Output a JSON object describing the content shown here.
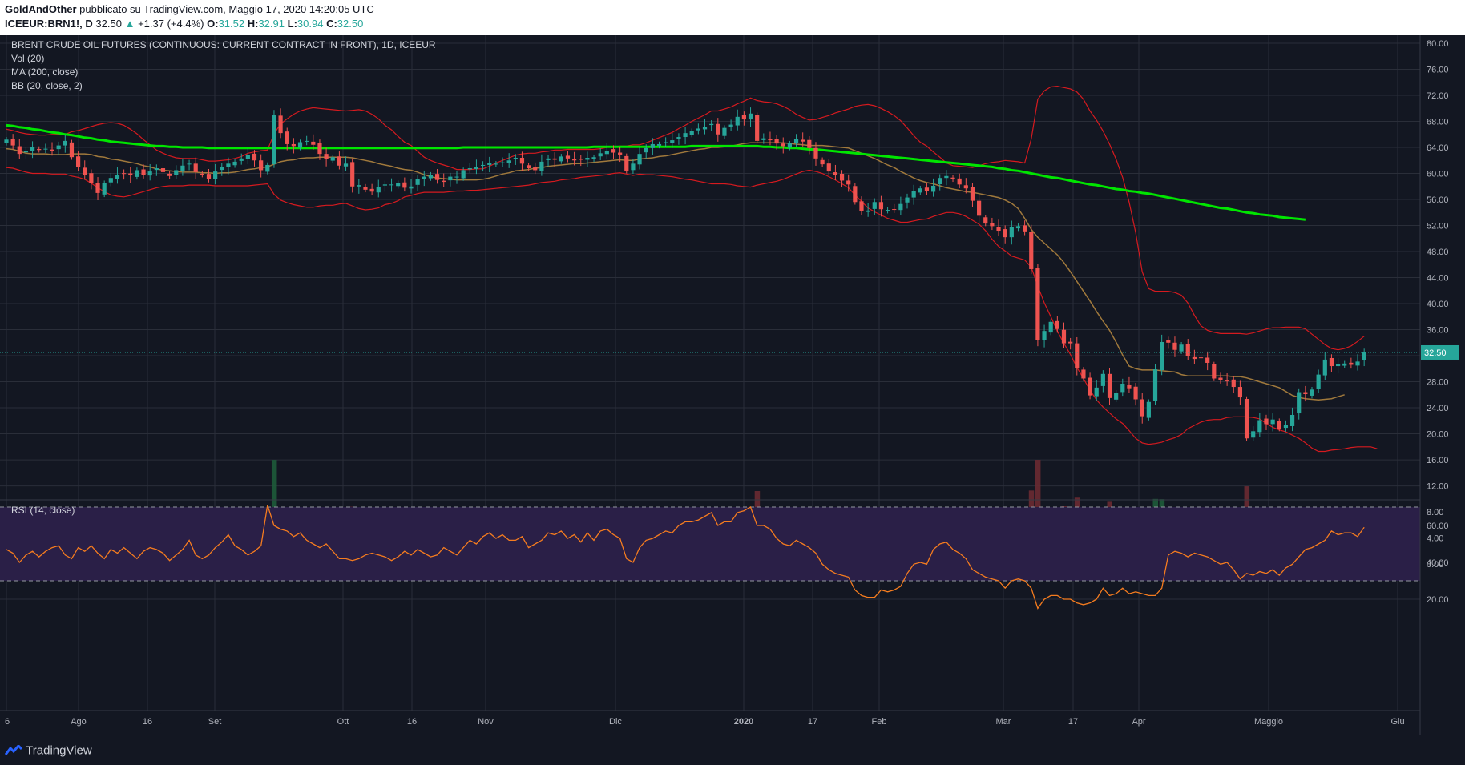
{
  "header": {
    "author": "GoldAndOther",
    "published_text": "pubblicato su TradingView.com, Maggio 17, 2020 14:20:05 UTC",
    "symbol": "ICEEUR:BRN1!, D",
    "last": "32.50",
    "change_arrow": "▲",
    "change": "+1.37 (+4.4%)",
    "o_label": "O:",
    "o_value": "31.52",
    "h_label": "H:",
    "h_value": "32.91",
    "l_label": "L:",
    "l_value": "30.94",
    "c_label": "C:",
    "c_value": "32.50"
  },
  "legend": {
    "title": "BRENT CRUDE OIL FUTURES (CONTINUOUS: CURRENT CONTRACT IN FRONT), 1D, ICEEUR",
    "vol": "Vol (20)",
    "ma": "MA (200, close)",
    "bb": "BB (20, close, 2)",
    "rsi": "RSI (14, close)"
  },
  "footer": {
    "brand": "TradingView",
    "brand_icon": "tradingview-logo-icon"
  },
  "colors": {
    "background": "#131722",
    "grid": "#2a2e39",
    "up": "#26a69a",
    "down": "#ef5350",
    "ma200": "#00e600",
    "bb_basis": "#a0793c",
    "bb_band": "#d61a1f",
    "rsi_line": "#f57c1f",
    "rsi_band": "#2a1f47",
    "price_tag": "#26a69a"
  },
  "chart_data": [
    {
      "type": "candlestick",
      "title": "BRENT CRUDE OIL FUTURES (CONTINUOUS: CURRENT CONTRACT IN FRONT), 1D, ICEEUR",
      "x_ticks": [
        "6",
        "Ago",
        "16",
        "Set",
        "Ott",
        "16",
        "Nov",
        "Dic",
        "2020",
        "17",
        "Feb",
        "Mar",
        "17",
        "Apr",
        "Maggio",
        "Giu"
      ],
      "y_ticks": [
        "80.00",
        "76.00",
        "72.00",
        "68.00",
        "64.00",
        "60.00",
        "56.00",
        "52.00",
        "48.00",
        "44.00",
        "40.00",
        "36.00",
        "32.00",
        "28.00",
        "24.00",
        "20.00",
        "16.00",
        "12.00",
        "8.00",
        "4.00",
        "0.00"
      ],
      "ylim": [
        -2,
        81
      ],
      "last_price_label": "32.50",
      "close_series": [
        65.2,
        64.3,
        63.0,
        63.5,
        64.0,
        63.6,
        63.8,
        63.5,
        64.3,
        65.0,
        62.5,
        61.0,
        59.8,
        58.5,
        57.0,
        58.5,
        59.3,
        59.8,
        60.0,
        59.7,
        60.5,
        59.8,
        60.3,
        60.8,
        60.2,
        59.6,
        60.5,
        61.2,
        61.5,
        60.2,
        59.8,
        59.2,
        60.3,
        61.0,
        61.5,
        61.8,
        62.3,
        62.8,
        62.0,
        60.5,
        61.3,
        69.0,
        66.2,
        64.5,
        64.2,
        64.8,
        65.0,
        64.4,
        63.0,
        62.2,
        62.5,
        61.2,
        61.5,
        58.0,
        58.2,
        57.5,
        57.2,
        57.9,
        58.3,
        58.3,
        58.5,
        57.8,
        58.0,
        59.2,
        59.5,
        59.8,
        59.0,
        58.7,
        59.5,
        59.5,
        60.5,
        60.8,
        61.0,
        61.3,
        61.6,
        61.5,
        61.7,
        62.0,
        62.4,
        61.5,
        60.8,
        60.5,
        61.8,
        62.3,
        62.1,
        62.6,
        62.3,
        62.0,
        62.1,
        62.4,
        62.5,
        63.1,
        63.5,
        63.2,
        62.9,
        60.4,
        61.5,
        63.0,
        63.9,
        64.5,
        64.5,
        64.8,
        65.1,
        65.6,
        66.2,
        66.5,
        66.9,
        67.2,
        67.6,
        66.0,
        67.0,
        67.5,
        68.7,
        68.3,
        69.2,
        65.0,
        65.4,
        65.1,
        64.6,
        64.2,
        64.6,
        65.3,
        64.9,
        63.9,
        62.3,
        61.4,
        60.3,
        59.7,
        58.9,
        58.3,
        55.6,
        54.2,
        54.3,
        55.6,
        54.5,
        54.4,
        54.5,
        55.3,
        56.3,
        57.3,
        57.7,
        57.3,
        58.1,
        59.3,
        59.6,
        59.1,
        58.3,
        57.7,
        55.8,
        53.5,
        52.3,
        51.9,
        51.2,
        50.2,
        51.8,
        51.9,
        51.1,
        45.3,
        34.4,
        35.8,
        37.2,
        36.1,
        33.9,
        33.9,
        30.1,
        28.5,
        25.9,
        27.1,
        29.2,
        25.5,
        26.3,
        27.7,
        27.0,
        25.3,
        22.7,
        24.9,
        29.9,
        34.1,
        34.0,
        32.9,
        33.7,
        31.9,
        31.5,
        31.7,
        30.9,
        28.5,
        28.3,
        28.1,
        27.2,
        25.6,
        19.3,
        20.4,
        22.1,
        21.5,
        22.2,
        20.8,
        21.3,
        22.9,
        26.4,
        26.1,
        26.8,
        29.1,
        31.4,
        30.4,
        30.7,
        30.8,
        30.6,
        31.1,
        32.5
      ],
      "bb_upper": [
        66.8,
        66.6,
        66.3,
        66.1,
        66.0,
        65.9,
        65.9,
        66.0,
        66.0,
        66.0,
        66.4,
        66.6,
        66.9,
        67.2,
        67.5,
        67.7,
        67.8,
        67.7,
        67.4,
        66.8,
        66.1,
        65.2,
        64.4,
        63.6,
        63.1,
        62.7,
        62.4,
        62.3,
        62.3,
        62.3,
        62.1,
        61.9,
        61.9,
        62.0,
        62.1,
        62.3,
        62.6,
        63.1,
        63.3,
        63.5,
        63.6,
        66.1,
        67.6,
        68.4,
        69.1,
        69.6,
        69.9,
        70.1,
        70.0,
        69.9,
        69.8,
        69.7,
        69.6,
        69.7,
        69.8,
        69.6,
        69.1,
        68.4,
        67.4,
        66.7,
        65.7,
        64.8,
        64.3,
        63.4,
        62.5,
        62.0,
        61.6,
        61.3,
        61.0,
        60.6,
        60.6,
        60.6,
        60.7,
        60.7,
        61.1,
        61.6,
        62.0,
        62.4,
        62.8,
        63.0,
        63.1,
        63.1,
        63.3,
        63.4,
        63.6,
        63.6,
        63.7,
        63.7,
        63.7,
        63.7,
        63.7,
        63.8,
        64.0,
        64.1,
        64.2,
        64.2,
        64.4,
        64.4,
        64.7,
        65.1,
        65.5,
        65.9,
        66.3,
        66.9,
        67.4,
        68.0,
        68.5,
        69.0,
        69.6,
        69.6,
        69.9,
        70.2,
        70.7,
        71.1,
        71.6,
        71.2,
        71.0,
        70.9,
        70.7,
        70.3,
        69.8,
        69.1,
        68.6,
        68.2,
        68.3,
        68.6,
        68.9,
        69.3,
        69.6,
        69.9,
        70.3,
        70.5,
        70.6,
        70.4,
        70.0,
        69.5,
        68.9,
        68.1,
        67.0,
        65.8,
        64.8,
        64.2,
        63.3,
        62.5,
        61.6,
        61.2,
        61.1,
        61.0,
        60.9,
        61.2,
        61.5,
        61.7,
        61.8,
        62.0,
        61.9,
        61.8,
        61.6,
        65.3,
        71.4,
        72.7,
        73.3,
        73.4,
        73.2,
        73.0,
        72.5,
        71.4,
        69.6,
        68.2,
        66.5,
        64.5,
        62.2,
        59.4,
        55.6,
        50.9,
        44.9,
        42.3,
        41.9,
        41.9,
        41.9,
        41.7,
        41.3,
        40.1,
        38.2,
        36.6,
        35.9,
        35.6,
        35.4,
        35.4,
        35.4,
        35.4,
        35.3,
        35.5,
        35.8,
        36.1,
        36.3,
        36.3,
        36.4,
        36.4,
        36.4,
        36.1,
        35.3,
        34.5,
        33.7,
        33.1,
        32.9,
        33.1,
        33.5,
        34.2,
        35.0
      ],
      "bb_lower": [
        60.9,
        60.8,
        60.5,
        60.2,
        60.0,
        60.0,
        60.0,
        59.9,
        59.9,
        59.9,
        59.6,
        59.4,
        59.1,
        58.5,
        57.8,
        57.2,
        56.7,
        56.5,
        56.4,
        56.6,
        56.9,
        57.2,
        57.5,
        57.8,
        58.0,
        58.1,
        58.1,
        58.1,
        58.2,
        58.2,
        58.2,
        58.2,
        58.1,
        58.1,
        58.1,
        58.1,
        58.1,
        58.1,
        58.2,
        58.3,
        58.4,
        56.8,
        55.9,
        55.5,
        55.2,
        55.0,
        54.8,
        54.8,
        55.0,
        55.1,
        55.1,
        55.3,
        55.4,
        55.0,
        54.6,
        54.4,
        54.5,
        54.7,
        55.2,
        55.4,
        55.8,
        56.4,
        56.6,
        56.9,
        57.1,
        57.1,
        57.1,
        57.1,
        57.2,
        57.3,
        57.3,
        57.4,
        57.4,
        57.5,
        57.6,
        57.7,
        57.8,
        57.9,
        58.0,
        58.1,
        58.2,
        58.4,
        58.6,
        58.7,
        58.8,
        59.0,
        59.1,
        59.2,
        59.4,
        59.5,
        59.6,
        59.7,
        59.8,
        60.0,
        60.1,
        59.9,
        59.7,
        59.9,
        59.8,
        59.8,
        59.7,
        59.6,
        59.5,
        59.3,
        59.1,
        59.0,
        58.8,
        58.6,
        58.4,
        58.4,
        58.4,
        58.3,
        58.1,
        58.0,
        57.9,
        58.2,
        58.4,
        58.6,
        58.8,
        59.1,
        59.5,
        59.9,
        60.3,
        60.5,
        60.3,
        60.0,
        59.5,
        59.0,
        58.4,
        57.8,
        56.7,
        55.7,
        54.7,
        54.1,
        53.6,
        53.1,
        52.8,
        52.5,
        52.5,
        52.7,
        52.9,
        53.0,
        53.4,
        53.7,
        54.0,
        54.0,
        53.8,
        53.4,
        52.8,
        52.2,
        51.2,
        49.9,
        48.8,
        48.1,
        47.3,
        47.0,
        46.7,
        45.6,
        42.7,
        40.1,
        38.0,
        35.8,
        33.9,
        32.2,
        30.2,
        28.5,
        26.7,
        25.2,
        24.1,
        23.2,
        22.3,
        21.6,
        20.5,
        19.3,
        18.6,
        18.4,
        18.5,
        18.7,
        19.1,
        19.4,
        19.9,
        20.8,
        21.3,
        21.8,
        22.1,
        22.2,
        22.2,
        22.5,
        22.6,
        22.6,
        22.6,
        22.5,
        22.3,
        21.6,
        21.0,
        20.6,
        20.3,
        19.8,
        19.3,
        18.6,
        17.8,
        17.3,
        17.3,
        17.5,
        17.6,
        17.7,
        17.9,
        18.0,
        18.0,
        18.0,
        17.7
      ],
      "bb_basis": [
        63.8,
        63.7,
        63.4,
        63.1,
        63.0,
        63.0,
        63.0,
        62.9,
        62.9,
        62.9,
        63.0,
        63.0,
        63.0,
        62.9,
        62.6,
        62.5,
        62.2,
        62.1,
        61.9,
        61.7,
        61.5,
        61.2,
        61.0,
        60.7,
        60.5,
        60.4,
        60.3,
        60.2,
        60.2,
        60.2,
        60.1,
        60.1,
        60.0,
        60.1,
        60.1,
        60.2,
        60.4,
        60.6,
        60.7,
        60.9,
        61.0,
        61.4,
        61.8,
        62.0,
        62.1,
        62.3,
        62.4,
        62.4,
        62.5,
        62.5,
        62.5,
        62.5,
        62.5,
        62.4,
        62.2,
        62.0,
        61.8,
        61.5,
        61.3,
        61.1,
        60.8,
        60.6,
        60.5,
        60.2,
        59.8,
        59.5,
        59.3,
        59.2,
        59.1,
        59.0,
        59.0,
        59.0,
        59.0,
        59.1,
        59.3,
        59.6,
        59.9,
        60.1,
        60.4,
        60.5,
        60.6,
        60.8,
        60.9,
        61.1,
        61.2,
        61.3,
        61.4,
        61.5,
        61.5,
        61.6,
        61.7,
        61.8,
        61.9,
        62.0,
        62.1,
        62.0,
        62.0,
        62.2,
        62.3,
        62.4,
        62.6,
        62.7,
        62.9,
        63.1,
        63.3,
        63.5,
        63.7,
        63.8,
        64.0,
        64.0,
        64.1,
        64.2,
        64.4,
        64.6,
        64.7,
        64.7,
        64.7,
        64.7,
        64.7,
        64.7,
        64.6,
        64.5,
        64.4,
        64.3,
        64.3,
        64.3,
        64.2,
        64.1,
        64.0,
        63.9,
        63.5,
        63.1,
        62.7,
        62.3,
        61.8,
        61.3,
        60.9,
        60.3,
        59.8,
        59.3,
        58.9,
        58.6,
        58.4,
        58.1,
        57.8,
        57.6,
        57.4,
        57.2,
        57.1,
        56.9,
        56.7,
        56.5,
        56.3,
        55.9,
        55.4,
        54.6,
        53.1,
        51.4,
        50.2,
        49.3,
        48.4,
        47.5,
        46.3,
        44.9,
        43.4,
        41.9,
        40.4,
        38.8,
        37.3,
        35.9,
        34.1,
        32.1,
        30.4,
        30.0,
        29.8,
        29.8,
        29.8,
        29.7,
        29.6,
        29.5,
        29.1,
        28.9,
        28.9,
        28.9,
        28.9,
        28.9,
        28.9,
        28.9,
        28.8,
        28.8,
        28.6,
        28.3,
        28.0,
        27.7,
        27.4,
        27.1,
        26.5,
        25.9,
        25.6,
        25.4,
        25.3,
        25.2,
        25.3,
        25.4,
        25.7,
        26.0
      ],
      "ma200": [
        67.4,
        67.3,
        67.1,
        67.0,
        66.8,
        66.7,
        66.5,
        66.3,
        66.2,
        66.0,
        65.9,
        65.7,
        65.5,
        65.4,
        65.2,
        65.1,
        64.9,
        64.8,
        64.7,
        64.6,
        64.5,
        64.4,
        64.3,
        64.2,
        64.2,
        64.1,
        64.1,
        64.0,
        64.0,
        64.0,
        64.0,
        63.9,
        63.9,
        63.9,
        63.9,
        63.9,
        63.9,
        63.9,
        63.9,
        63.9,
        63.9,
        63.9,
        63.9,
        63.9,
        63.9,
        63.9,
        63.9,
        63.9,
        63.9,
        63.9,
        63.9,
        63.9,
        63.9,
        63.9,
        63.9,
        63.9,
        63.9,
        63.9,
        63.9,
        63.9,
        63.9,
        63.9,
        63.9,
        63.9,
        63.9,
        63.9,
        63.9,
        63.9,
        63.9,
        63.9,
        64.0,
        64.0,
        64.0,
        64.0,
        64.0,
        64.0,
        64.0,
        64.0,
        64.0,
        64.0,
        64.0,
        64.0,
        64.0,
        64.0,
        64.0,
        64.0,
        64.0,
        64.0,
        64.0,
        64.0,
        64.1,
        64.1,
        64.1,
        64.1,
        64.1,
        64.1,
        64.1,
        64.1,
        64.1,
        64.1,
        64.1,
        64.1,
        64.1,
        64.1,
        64.1,
        64.2,
        64.2,
        64.2,
        64.2,
        64.2,
        64.2,
        64.2,
        64.2,
        64.2,
        64.2,
        64.2,
        64.1,
        64.1,
        64.0,
        64.0,
        63.9,
        63.9,
        63.8,
        63.7,
        63.7,
        63.6,
        63.5,
        63.4,
        63.3,
        63.2,
        63.1,
        63.0,
        62.9,
        62.8,
        62.7,
        62.6,
        62.5,
        62.4,
        62.3,
        62.2,
        62.1,
        62.0,
        61.9,
        61.8,
        61.7,
        61.6,
        61.5,
        61.4,
        61.3,
        61.2,
        61.1,
        61.0,
        60.8,
        60.7,
        60.5,
        60.4,
        60.2,
        60.0,
        59.8,
        59.6,
        59.4,
        59.3,
        59.1,
        58.9,
        58.7,
        58.5,
        58.3,
        58.2,
        58.0,
        57.8,
        57.6,
        57.5,
        57.3,
        57.2,
        57.0,
        56.9,
        56.7,
        56.5,
        56.3,
        56.1,
        55.9,
        55.7,
        55.5,
        55.3,
        55.1,
        54.9,
        54.7,
        54.6,
        54.4,
        54.2,
        54.0,
        53.9,
        53.7,
        53.6,
        53.5,
        53.3,
        53.2,
        53.1,
        53.0,
        52.9
      ],
      "volume_note": "volume in contracts (thousands not labeled); colored by candle direction"
    },
    {
      "type": "line",
      "title": "RSI (14, close)",
      "y_ticks": [
        "60.00",
        "40.00",
        "20.00"
      ],
      "ylim": [
        5,
        75
      ],
      "bands": [
        30,
        70
      ],
      "values": [
        47,
        45,
        40,
        44,
        46,
        43,
        46,
        48,
        49,
        44,
        42,
        48,
        46,
        49,
        45,
        42,
        47,
        45,
        48,
        45,
        42,
        46,
        48,
        47,
        45,
        41,
        44,
        47,
        52,
        44,
        42,
        44,
        48,
        51,
        55,
        49,
        47,
        44,
        46,
        49,
        71,
        60,
        58,
        57,
        54,
        56,
        52,
        50,
        48,
        50,
        46,
        42,
        42,
        41,
        42,
        44,
        45,
        44,
        43,
        41,
        43,
        46,
        44,
        47,
        45,
        43,
        44,
        48,
        46,
        44,
        48,
        52,
        50,
        54,
        56,
        53,
        55,
        52,
        52,
        54,
        48,
        50,
        52,
        56,
        55,
        57,
        53,
        55,
        51,
        56,
        52,
        57,
        58,
        55,
        53,
        42,
        40,
        48,
        52,
        53,
        55,
        57,
        56,
        60,
        62,
        62,
        63,
        65,
        67,
        60,
        62,
        62,
        67,
        68,
        70,
        60,
        60,
        58,
        53,
        50,
        49,
        52,
        50,
        48,
        45,
        39,
        36,
        34,
        33,
        32,
        25,
        22,
        21,
        21,
        25,
        24,
        25,
        27,
        34,
        39,
        40,
        39,
        47,
        50,
        51,
        47,
        45,
        42,
        36,
        34,
        32,
        31,
        30,
        26,
        30,
        31,
        30,
        26,
        15,
        20,
        22,
        22,
        20,
        20,
        18,
        17,
        18,
        20,
        26,
        22,
        23,
        26,
        23,
        24,
        23,
        22,
        22,
        26,
        44,
        46,
        45,
        43,
        45,
        44,
        43,
        41,
        39,
        40,
        36,
        31,
        34,
        33,
        35,
        34,
        36,
        33,
        37,
        39,
        43,
        47,
        48,
        50,
        52,
        57,
        55,
        56,
        56,
        54,
        59
      ]
    }
  ]
}
